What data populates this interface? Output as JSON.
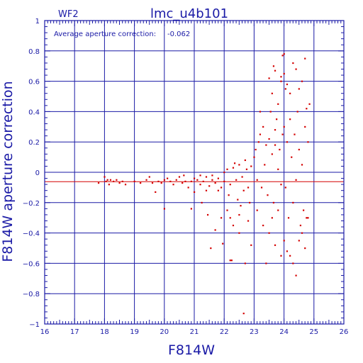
{
  "chart_data": {
    "type": "scatter",
    "title": "lmc_u4b101",
    "chip_label": "WF2",
    "annotation": "Average aperture correction:",
    "annotation_value": "-0.062",
    "xlabel": "F814W",
    "ylabel": "F814W aperture correction",
    "xlim": [
      16,
      26
    ],
    "ylim": [
      -1,
      1
    ],
    "x_ticks": [
      "16",
      "17",
      "18",
      "19",
      "20",
      "21",
      "22",
      "23",
      "24",
      "25",
      "26"
    ],
    "y_ticks": [
      "−1",
      "−0.8",
      "−0.6",
      "−0.4",
      "−0.2",
      "0",
      "0.2",
      "0.4",
      "0.6",
      "0.8",
      "1"
    ],
    "grid": true,
    "reference_line": -0.062,
    "colors": {
      "axes": "#1a1aa6",
      "points": "#d40000",
      "reference": "#d40000"
    },
    "series": [
      {
        "points": [
          [
            17.8,
            -0.07
          ],
          [
            18.0,
            -0.03
          ],
          [
            18.05,
            -0.06
          ],
          [
            18.1,
            -0.05
          ],
          [
            18.15,
            -0.08
          ],
          [
            18.2,
            -0.05
          ],
          [
            18.3,
            -0.06
          ],
          [
            18.4,
            -0.05
          ],
          [
            18.5,
            -0.07
          ],
          [
            18.6,
            -0.06
          ],
          [
            18.7,
            -0.08
          ],
          [
            19.0,
            -0.06
          ],
          [
            19.2,
            -0.07
          ],
          [
            19.4,
            -0.05
          ],
          [
            19.5,
            -0.03
          ],
          [
            19.6,
            -0.07
          ],
          [
            19.7,
            -0.13
          ],
          [
            19.8,
            -0.06
          ],
          [
            19.9,
            -0.07
          ],
          [
            20.0,
            -0.05
          ],
          [
            20.1,
            -0.04
          ],
          [
            20.2,
            -0.06
          ],
          [
            20.3,
            -0.08
          ],
          [
            20.4,
            -0.05
          ],
          [
            20.5,
            -0.03
          ],
          [
            20.6,
            -0.07
          ],
          [
            20.65,
            -0.02
          ],
          [
            20.7,
            -0.06
          ],
          [
            20.8,
            -0.1
          ],
          [
            20.9,
            -0.06
          ],
          [
            21.0,
            -0.04
          ],
          [
            21.0,
            -0.13
          ],
          [
            20.0,
            -0.24
          ],
          [
            20.9,
            -0.24
          ],
          [
            21.1,
            -0.05
          ],
          [
            21.2,
            -0.08
          ],
          [
            21.3,
            -0.06
          ],
          [
            21.4,
            -0.03
          ],
          [
            21.5,
            -0.09
          ],
          [
            21.6,
            -0.05
          ],
          [
            21.7,
            -0.07
          ],
          [
            21.8,
            -0.04
          ],
          [
            21.9,
            -0.1
          ],
          [
            22.0,
            -0.06
          ],
          [
            21.2,
            -0.02
          ],
          [
            21.4,
            -0.12
          ],
          [
            21.6,
            -0.02
          ],
          [
            21.8,
            -0.12
          ],
          [
            22.0,
            0.0
          ],
          [
            21.25,
            -0.2
          ],
          [
            21.45,
            -0.28
          ],
          [
            21.7,
            -0.38
          ],
          [
            21.9,
            -0.3
          ],
          [
            22.1,
            -0.25
          ],
          [
            22.3,
            -0.35
          ],
          [
            22.5,
            -0.4
          ],
          [
            21.55,
            -0.5
          ],
          [
            21.95,
            -0.47
          ],
          [
            22.2,
            -0.58
          ],
          [
            22.25,
            -0.58
          ],
          [
            22.1,
            0.02
          ],
          [
            22.2,
            -0.08
          ],
          [
            22.3,
            0.03
          ],
          [
            22.4,
            -0.05
          ],
          [
            22.5,
            0.05
          ],
          [
            22.6,
            -0.03
          ],
          [
            22.7,
            0.08
          ],
          [
            22.8,
            -0.1
          ],
          [
            22.9,
            0.04
          ],
          [
            22.15,
            -0.15
          ],
          [
            22.45,
            -0.18
          ],
          [
            22.65,
            -0.12
          ],
          [
            22.85,
            -0.2
          ],
          [
            22.35,
            0.06
          ],
          [
            22.55,
            -0.22
          ],
          [
            22.75,
            0.02
          ],
          [
            22.2,
            -0.3
          ],
          [
            22.5,
            -0.28
          ],
          [
            22.8,
            -0.32
          ],
          [
            22.9,
            -0.48
          ],
          [
            22.7,
            -0.6
          ],
          [
            22.65,
            -0.93
          ],
          [
            23.0,
            0.1
          ],
          [
            23.05,
            0.15
          ],
          [
            23.1,
            -0.05
          ],
          [
            23.15,
            0.2
          ],
          [
            23.2,
            0.25
          ],
          [
            23.25,
            -0.1
          ],
          [
            23.3,
            0.3
          ],
          [
            23.35,
            0.05
          ],
          [
            23.4,
            0.18
          ],
          [
            23.45,
            -0.15
          ],
          [
            23.5,
            0.22
          ],
          [
            23.55,
            0.4
          ],
          [
            23.6,
            0.12
          ],
          [
            23.65,
            -0.2
          ],
          [
            23.7,
            0.28
          ],
          [
            23.75,
            0.35
          ],
          [
            23.8,
            0.02
          ],
          [
            23.85,
            0.15
          ],
          [
            23.9,
            -0.08
          ],
          [
            23.95,
            0.25
          ],
          [
            23.1,
            -0.25
          ],
          [
            23.3,
            -0.35
          ],
          [
            23.5,
            -0.4
          ],
          [
            23.7,
            -0.48
          ],
          [
            23.9,
            -0.55
          ],
          [
            23.4,
            -0.6
          ],
          [
            23.2,
            0.4
          ],
          [
            23.6,
            0.52
          ],
          [
            23.5,
            0.62
          ],
          [
            23.7,
            0.18
          ],
          [
            23.8,
            0.45
          ],
          [
            23.9,
            0.6
          ],
          [
            23.6,
            -0.3
          ],
          [
            23.8,
            -0.25
          ],
          [
            23.65,
            0.7
          ],
          [
            23.7,
            0.67
          ],
          [
            23.9,
            0.63
          ],
          [
            23.95,
            0.77
          ],
          [
            24.0,
            0.78
          ],
          [
            24.0,
            0.65
          ],
          [
            24.05,
            0.55
          ],
          [
            24.1,
            0.58
          ],
          [
            24.2,
            0.52
          ],
          [
            24.3,
            0.72
          ],
          [
            24.4,
            0.68
          ],
          [
            24.5,
            0.55
          ],
          [
            24.6,
            0.6
          ],
          [
            24.7,
            0.75
          ],
          [
            24.0,
            0.3
          ],
          [
            24.05,
            -0.1
          ],
          [
            24.1,
            0.2
          ],
          [
            24.15,
            -0.3
          ],
          [
            24.2,
            0.35
          ],
          [
            24.25,
            0.1
          ],
          [
            24.3,
            -0.2
          ],
          [
            24.35,
            0.25
          ],
          [
            24.4,
            -0.05
          ],
          [
            24.45,
            0.4
          ],
          [
            24.5,
            0.15
          ],
          [
            24.55,
            -0.35
          ],
          [
            24.6,
            0.05
          ],
          [
            24.65,
            -0.25
          ],
          [
            24.7,
            0.3
          ],
          [
            24.75,
            -0.3
          ],
          [
            24.8,
            0.2
          ],
          [
            24.85,
            0.45
          ],
          [
            24.75,
            0.42
          ],
          [
            24.0,
            -0.45
          ],
          [
            24.1,
            -0.52
          ],
          [
            24.2,
            -0.55
          ],
          [
            24.3,
            -0.6
          ],
          [
            24.4,
            -0.68
          ],
          [
            24.5,
            -0.45
          ],
          [
            24.6,
            -0.4
          ],
          [
            24.7,
            -0.5
          ],
          [
            24.8,
            -0.3
          ]
        ]
      }
    ]
  }
}
